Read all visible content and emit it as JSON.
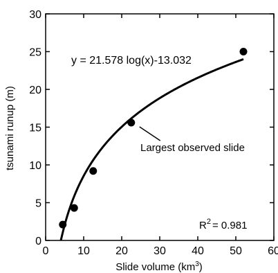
{
  "chart_data": {
    "type": "scatter",
    "xlabel": "Slide volume (km",
    "xlabel_sup": "3",
    "xlabel_end": ")",
    "ylabel": "tsunami runup (m)",
    "xlim": [
      0,
      60
    ],
    "ylim": [
      0,
      30
    ],
    "xticks": [
      0,
      10,
      20,
      30,
      40,
      50,
      60
    ],
    "yticks": [
      0,
      5,
      10,
      15,
      20,
      25,
      30
    ],
    "grid": false,
    "series": [
      {
        "x": [
          4.5,
          7.5,
          12.5,
          22.5,
          52
        ],
        "y": [
          2.1,
          4.3,
          9.2,
          15.6,
          25.0
        ]
      }
    ],
    "fit": {
      "equation": "y = 21.578 log(x)-13.032",
      "a": 21.578,
      "b": -13.032,
      "x_range": [
        4.0,
        52
      ],
      "r2_prefix": "R",
      "r2_sup": "2",
      "r2_value": "= 0.981"
    },
    "annotation": {
      "text": "Largest observed slide",
      "points_to": [
        22.5,
        15.6
      ]
    }
  }
}
